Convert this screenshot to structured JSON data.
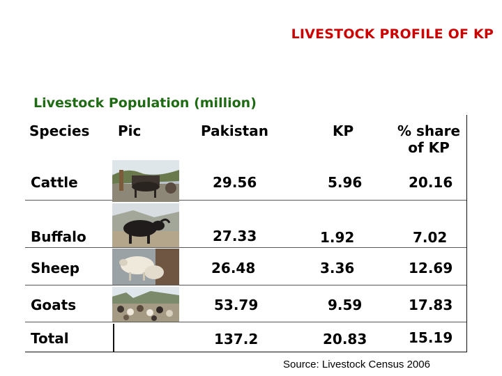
{
  "slide": {
    "title": "LIVESTOCK PROFILE OF KP",
    "caption": "Livestock Population (million)",
    "source": "Source: Livestock Census 2006"
  },
  "table": {
    "headers": {
      "species": "Species",
      "pic": "Pic",
      "pakistan": "Pakistan",
      "kp": "KP",
      "share_line1": "% share",
      "share_line2": "of KP"
    },
    "rows": [
      {
        "species": "Cattle",
        "pakistan": "29.56",
        "kp": "5.96",
        "share": "20.16",
        "pic": "cattle-photo"
      },
      {
        "species": "Buffalo",
        "pakistan": "27.33",
        "kp": "1.92",
        "share": "7.02",
        "pic": "buffalo-photo"
      },
      {
        "species": "Sheep",
        "pakistan": "26.48",
        "kp": "3.36",
        "share": "12.69",
        "pic": "sheep-photo"
      },
      {
        "species": "Goats",
        "pakistan": "53.79",
        "kp": "9.59",
        "share": "17.83",
        "pic": "goats-photo"
      },
      {
        "species": "Total",
        "pakistan": "137.2",
        "kp": "20.83",
        "share": "15.19",
        "pic": ""
      }
    ]
  }
}
